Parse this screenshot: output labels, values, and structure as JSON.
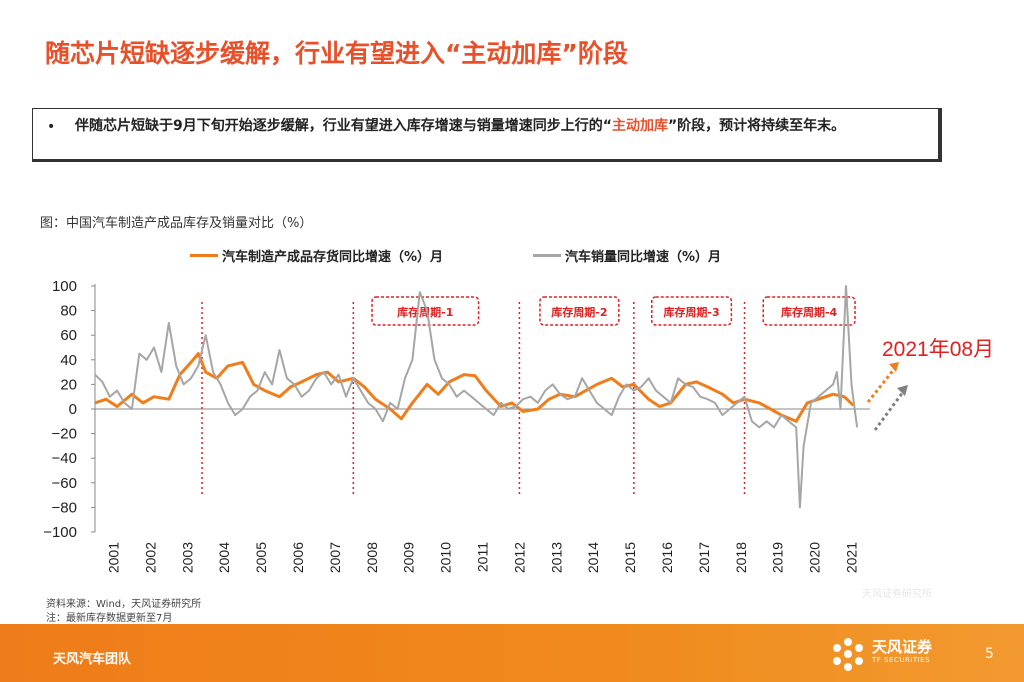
{
  "page": {
    "title": "随芯片短缺逐步缓解，行业有望进入“主动加库”阶段",
    "bullet": {
      "symbol": "•",
      "text_before": "伴随芯片短缺于9月下旬开始逐步缓解，行业有望进入库存增速与销量增速同步上行的“",
      "text_highlight": "主动加库",
      "text_after": "”阶段，预计将持续至年末。"
    },
    "figure_caption": "图：中国汽车制造产成品库存及销量对比（%）",
    "source_line1": "资料来源：Wind，天风证券研究所",
    "source_line2": "注：最新库存数据更新至7月",
    "watermark": "天风证券研究所",
    "footer": {
      "team": "天风汽车团队",
      "logo_cn": "天风证券",
      "logo_en": "TF SECURITIES",
      "page_number": "5"
    },
    "colors": {
      "accent": "#e8502a",
      "orange_series": "#f07d1a",
      "gray_series": "#a6a6a6",
      "red_marker": "#e02020"
    }
  },
  "chart_data": {
    "type": "line",
    "title": "",
    "xlabel": "",
    "ylabel": "",
    "ylim": [
      -100,
      100
    ],
    "yticks": [
      100,
      80,
      60,
      40,
      20,
      0,
      -20,
      -40,
      -60,
      -80,
      -100
    ],
    "xlim": [
      2001.0,
      2022.0
    ],
    "xticks": [
      "2001",
      "2002",
      "2003",
      "2004",
      "2005",
      "2006",
      "2007",
      "2008",
      "2009",
      "2010",
      "2011",
      "2012",
      "2013",
      "2014",
      "2015",
      "2016",
      "2017",
      "2018",
      "2019",
      "2020",
      "2021"
    ],
    "grid": false,
    "legend_position": "top",
    "series": [
      {
        "name": "汽车制造产成品存货同比增速（%）月",
        "color": "#f07d1a",
        "x": [
          2001.0,
          2001.3,
          2001.6,
          2002.0,
          2002.3,
          2002.6,
          2003.0,
          2003.3,
          2003.6,
          2003.8,
          2004.0,
          2004.3,
          2004.6,
          2005.0,
          2005.3,
          2005.6,
          2006.0,
          2006.3,
          2006.6,
          2007.0,
          2007.3,
          2007.6,
          2008.0,
          2008.3,
          2008.6,
          2009.0,
          2009.3,
          2009.6,
          2010.0,
          2010.3,
          2010.6,
          2011.0,
          2011.3,
          2011.6,
          2012.0,
          2012.3,
          2012.6,
          2013.0,
          2013.3,
          2013.6,
          2014.0,
          2014.3,
          2014.6,
          2015.0,
          2015.3,
          2015.6,
          2016.0,
          2016.3,
          2016.6,
          2017.0,
          2017.3,
          2017.6,
          2018.0,
          2018.3,
          2018.6,
          2019.0,
          2019.3,
          2019.6,
          2020.0,
          2020.3,
          2020.6,
          2021.0,
          2021.3,
          2021.55
        ],
        "y": [
          5,
          8,
          2,
          12,
          5,
          10,
          8,
          28,
          38,
          45,
          30,
          25,
          35,
          38,
          20,
          15,
          10,
          18,
          22,
          28,
          30,
          22,
          25,
          18,
          8,
          0,
          -8,
          5,
          20,
          12,
          22,
          28,
          27,
          15,
          2,
          5,
          -2,
          0,
          8,
          12,
          10,
          15,
          20,
          25,
          18,
          20,
          8,
          2,
          5,
          20,
          22,
          18,
          12,
          5,
          8,
          5,
          0,
          -5,
          -10,
          5,
          8,
          12,
          10,
          3
        ]
      },
      {
        "name": "汽车销量同比增速（%）月",
        "color": "#a6a6a6",
        "x": [
          2001.0,
          2001.2,
          2001.4,
          2001.6,
          2001.8,
          2002.0,
          2002.2,
          2002.4,
          2002.6,
          2002.8,
          2003.0,
          2003.2,
          2003.4,
          2003.6,
          2003.8,
          2004.0,
          2004.2,
          2004.4,
          2004.6,
          2004.8,
          2005.0,
          2005.2,
          2005.4,
          2005.6,
          2005.8,
          2006.0,
          2006.2,
          2006.4,
          2006.6,
          2006.8,
          2007.0,
          2007.2,
          2007.4,
          2007.6,
          2007.8,
          2008.0,
          2008.2,
          2008.4,
          2008.6,
          2008.8,
          2009.0,
          2009.2,
          2009.4,
          2009.6,
          2009.8,
          2010.0,
          2010.2,
          2010.4,
          2010.6,
          2010.8,
          2011.0,
          2011.2,
          2011.4,
          2011.6,
          2011.8,
          2012.0,
          2012.2,
          2012.4,
          2012.6,
          2012.8,
          2013.0,
          2013.2,
          2013.4,
          2013.6,
          2013.8,
          2014.0,
          2014.2,
          2014.4,
          2014.6,
          2014.8,
          2015.0,
          2015.2,
          2015.4,
          2015.6,
          2015.8,
          2016.0,
          2016.2,
          2016.4,
          2016.6,
          2016.8,
          2017.0,
          2017.2,
          2017.4,
          2017.6,
          2017.8,
          2018.0,
          2018.2,
          2018.4,
          2018.6,
          2018.8,
          2019.0,
          2019.2,
          2019.4,
          2019.6,
          2019.8,
          2020.0,
          2020.1,
          2020.2,
          2020.4,
          2020.6,
          2020.8,
          2021.0,
          2021.1,
          2021.2,
          2021.35,
          2021.5,
          2021.65
        ],
        "y": [
          28,
          22,
          10,
          15,
          5,
          0,
          45,
          40,
          50,
          30,
          70,
          35,
          20,
          25,
          35,
          60,
          30,
          20,
          5,
          -5,
          0,
          10,
          15,
          30,
          20,
          48,
          25,
          20,
          10,
          15,
          25,
          30,
          20,
          28,
          10,
          25,
          15,
          5,
          0,
          -10,
          5,
          0,
          25,
          40,
          95,
          80,
          40,
          25,
          20,
          10,
          15,
          10,
          5,
          0,
          -5,
          5,
          0,
          2,
          8,
          10,
          5,
          15,
          20,
          12,
          8,
          10,
          25,
          15,
          5,
          0,
          -5,
          10,
          20,
          15,
          18,
          25,
          15,
          10,
          5,
          25,
          20,
          18,
          10,
          8,
          5,
          -5,
          0,
          5,
          10,
          -10,
          -15,
          -10,
          -15,
          -5,
          -10,
          -15,
          -80,
          -30,
          5,
          10,
          15,
          20,
          30,
          0,
          100,
          20,
          -15
        ]
      }
    ],
    "annotations": {
      "cycles": [
        {
          "label": "库存周期-1",
          "x_start": 2008.1,
          "x_end": 2011.8
        },
        {
          "label": "库存周期-2",
          "x_start": 2012.65,
          "x_end": 2015.6
        },
        {
          "label": "库存周期-3",
          "x_start": 2015.68,
          "x_end": 2018.65
        },
        {
          "label": "库存周期-4",
          "x_start": 2018.7,
          "x_end": 2022.0
        }
      ],
      "divider_years": [
        2003.9,
        2008.0,
        2012.5,
        2015.6,
        2018.6
      ],
      "projection_label": "2021年08月"
    }
  }
}
